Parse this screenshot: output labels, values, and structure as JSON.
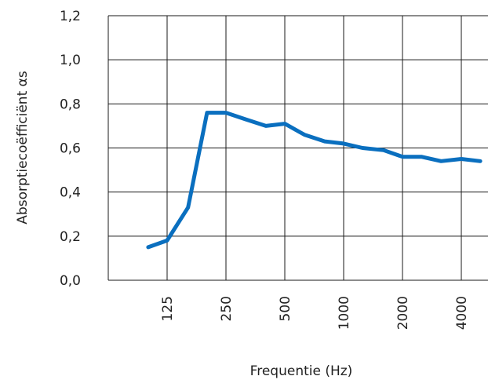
{
  "chart_data": {
    "type": "line",
    "xlabel": "Frequentie (Hz)",
    "ylabel": "Absorptiecoëfficiënt αs",
    "y_scale": "linear",
    "x_scale": "log",
    "ylim": [
      0.0,
      1.2
    ],
    "yticks": [
      0.0,
      0.2,
      0.4,
      0.6,
      0.8,
      1.0,
      1.2
    ],
    "ytick_labels": [
      "0,0",
      "0,2",
      "0,4",
      "0,6",
      "0,8",
      "1,0",
      "1,2"
    ],
    "xticks": [
      125,
      250,
      500,
      1000,
      2000,
      4000
    ],
    "xtick_labels": [
      "125",
      "250",
      "500",
      "1000",
      "2000",
      "4000"
    ],
    "grid": true,
    "series": [
      {
        "color": "#0a6fbf",
        "x": [
          100,
          125,
          160,
          200,
          250,
          315,
          400,
          500,
          630,
          800,
          1000,
          1250,
          1600,
          2000,
          2500,
          3150,
          4000,
          5000
        ],
        "y": [
          0.15,
          0.18,
          0.33,
          0.76,
          0.76,
          0.73,
          0.7,
          0.71,
          0.66,
          0.63,
          0.62,
          0.6,
          0.59,
          0.56,
          0.56,
          0.54,
          0.55,
          0.54
        ]
      }
    ]
  }
}
